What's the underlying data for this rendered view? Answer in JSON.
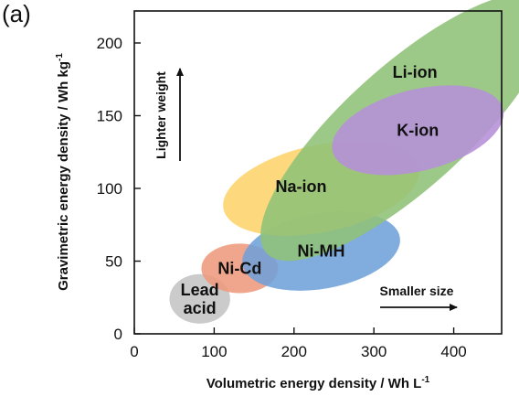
{
  "chart_data": {
    "type": "scatter",
    "panel_label": "(a)",
    "xlabel": "Volumetric energy density / Wh L",
    "xlabel_sup": "-1",
    "ylabel": "Gravimetric energy density / Wh kg",
    "ylabel_sup": "-1",
    "xlim": [
      0,
      460
    ],
    "ylim": [
      0,
      222
    ],
    "xticks": [
      0,
      100,
      200,
      300,
      400
    ],
    "yticks": [
      0,
      50,
      100,
      150,
      200
    ],
    "grid": false,
    "series": [
      {
        "name": "Lead acid",
        "label_lines": [
          "Lead",
          "acid"
        ],
        "color": "#c4c4c4",
        "region": {
          "cx": 82,
          "cy": 24,
          "rx": 38,
          "ry": 17,
          "rotation": 0
        }
      },
      {
        "name": "Ni-Cd",
        "label_lines": [
          "Ni-Cd"
        ],
        "color": "#ee9a7c",
        "region": {
          "cx": 132,
          "cy": 45,
          "rx": 48,
          "ry": 17,
          "rotation": 0
        }
      },
      {
        "name": "Ni-MH",
        "label_lines": [
          "Ni-MH"
        ],
        "color": "#6fa1d9",
        "region": {
          "cx": 234,
          "cy": 57,
          "rx": 100,
          "ry": 26,
          "rotation": -10
        }
      },
      {
        "name": "Na-ion",
        "label_lines": [
          "Na-ion"
        ],
        "color": "#fed36b",
        "region": {
          "cx": 234,
          "cy": 100,
          "rx": 125,
          "ry": 30,
          "rotation": -12
        }
      },
      {
        "name": "Li-ion",
        "label_lines": [
          "Li-ion"
        ],
        "color": "#8fc278",
        "region": {
          "cx": 340,
          "cy": 142,
          "rx": 235,
          "ry": 42,
          "rotation": -42
        }
      },
      {
        "name": "K-ion",
        "label_lines": [
          "K-ion"
        ],
        "color": "#b690d8",
        "region": {
          "cx": 355,
          "cy": 140,
          "rx": 110,
          "ry": 28,
          "rotation": -14
        }
      }
    ],
    "annotations": {
      "up_arrow_label": "Lighter weight",
      "right_arrow_label": "Smaller size"
    }
  }
}
